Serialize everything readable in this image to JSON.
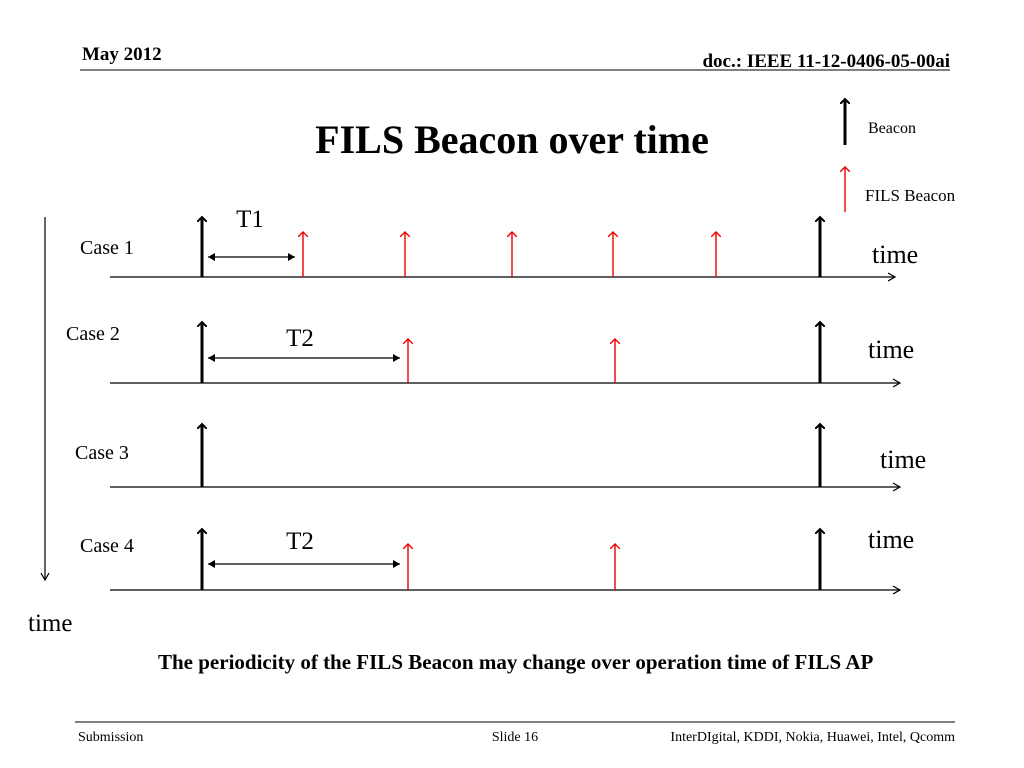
{
  "header": {
    "date": "May 2012",
    "doc": "doc.: IEEE 11-12-0406-05-00ai"
  },
  "title": "FILS Beacon over time",
  "legend": {
    "beacon": "Beacon",
    "fils_beacon": "FILS Beacon"
  },
  "cases": [
    {
      "label": "Case 1",
      "interval": "T1",
      "axis_label": "time"
    },
    {
      "label": "Case 2",
      "interval": "T2",
      "axis_label": "time"
    },
    {
      "label": "Case 3",
      "axis_label": "time"
    },
    {
      "label": "Case 4",
      "interval": "T2",
      "axis_label": "time"
    }
  ],
  "vertical_axis_label": "time",
  "note": "The periodicity of the FILS Beacon may change over operation time of FILS AP",
  "footer": {
    "left": "Submission",
    "center": "Slide 16",
    "right": "InterDIgital, KDDI, Nokia, Huawei, Intel, Qcomm"
  }
}
